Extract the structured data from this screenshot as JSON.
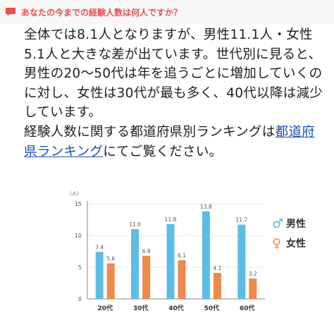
{
  "header": {
    "question": "あなたの今までの経験人数は何人ですか？",
    "accent_color": "#e84e4e"
  },
  "article": {
    "paragraph1": "全体では8.1人となりますが、男性11.1人・女性5.1人と大きな差が出ています。世代別に見ると、男性の20〜50代は年を追うごとに増加していくのに対し、女性は30代が最も多く、40代以降は減少しています。",
    "paragraph2_before_link": "経験人数に関する都道府県別ランキングは",
    "link_text": "都道府県ランキング",
    "paragraph2_after_link": "にてご覧ください。",
    "link_color": "#1a53b5"
  },
  "chart_data": {
    "type": "bar",
    "unit_label": "（人）",
    "categories": [
      "20代",
      "30代",
      "40代",
      "50代",
      "60代"
    ],
    "series": [
      {
        "name": "男性",
        "symbol": "♂",
        "color": "#5bbde4",
        "values": [
          7.4,
          11.0,
          11.8,
          13.8,
          11.7
        ]
      },
      {
        "name": "女性",
        "symbol": "♀",
        "color": "#ee8a4c",
        "values": [
          5.6,
          6.8,
          6.1,
          4.1,
          3.2
        ]
      }
    ],
    "y_ticks": [
      "0",
      "5",
      "10",
      "15"
    ],
    "ylim": [
      0,
      15
    ],
    "grid": true,
    "legend_position": "right"
  }
}
